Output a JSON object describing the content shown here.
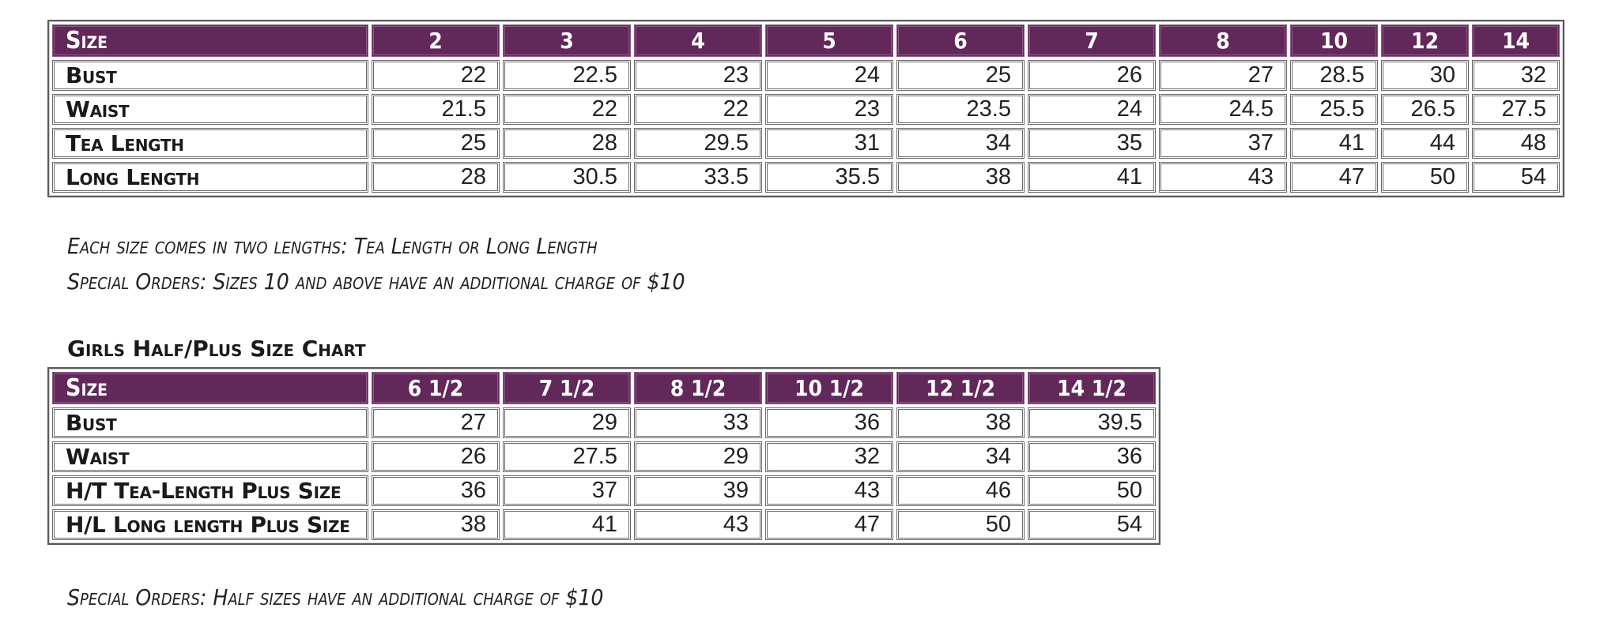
{
  "colors": {
    "header_bg": "#62285a",
    "header_text": "#ffffff",
    "border": "#6a6a6a"
  },
  "girls_chart": {
    "header_label": "Size",
    "columns": [
      "2",
      "3",
      "4",
      "5",
      "6",
      "7",
      "8",
      "10",
      "12",
      "14"
    ],
    "rows": [
      {
        "label": "Bust",
        "values": [
          "22",
          "22.5",
          "23",
          "24",
          "25",
          "26",
          "27",
          "28.5",
          "30",
          "32"
        ]
      },
      {
        "label": "Waist",
        "values": [
          "21.5",
          "22",
          "22",
          "23",
          "23.5",
          "24",
          "24.5",
          "25.5",
          "26.5",
          "27.5"
        ]
      },
      {
        "label": "Tea Length",
        "values": [
          "25",
          "28",
          "29.5",
          "31",
          "34",
          "35",
          "37",
          "41",
          "44",
          "48"
        ]
      },
      {
        "label": "Long Length",
        "values": [
          "28",
          "30.5",
          "33.5",
          "35.5",
          "38",
          "41",
          "43",
          "47",
          "50",
          "54"
        ]
      }
    ],
    "notes": [
      "Each size comes in two lengths: Tea Length or Long Length",
      "Special Orders: Sizes 10 and above have an additional charge of $10"
    ]
  },
  "half_plus_chart": {
    "title": "Girls Half/Plus Size Chart",
    "header_label": "Size",
    "columns": [
      "6 1/2",
      "7 1/2",
      "8 1/2",
      "10 1/2",
      "12 1/2",
      "14 1/2"
    ],
    "rows": [
      {
        "label": "Bust",
        "values": [
          "27",
          "29",
          "33",
          "36",
          "38",
          "39.5"
        ]
      },
      {
        "label": "Waist",
        "values": [
          "26",
          "27.5",
          "29",
          "32",
          "34",
          "36"
        ]
      },
      {
        "label": "H/T Tea-Length Plus Size",
        "values": [
          "36",
          "37",
          "39",
          "43",
          "46",
          "50"
        ]
      },
      {
        "label": "H/L Long length Plus Size",
        "values": [
          "38",
          "41",
          "43",
          "47",
          "50",
          "54"
        ]
      }
    ],
    "notes": [
      "Special Orders: Half sizes have an additional charge of $10"
    ]
  }
}
